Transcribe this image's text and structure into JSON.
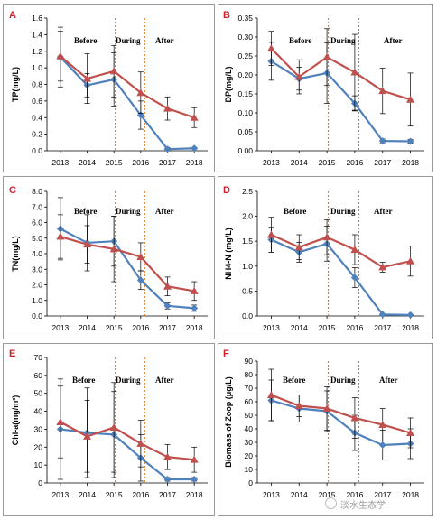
{
  "watermark": {
    "brand": "淡水生态学",
    "logo_text": "淡水生态学"
  },
  "colors": {
    "blue": "#4F81BD",
    "red": "#C0504D",
    "phase_line": "#E46C0A",
    "error_bar": "#000000",
    "axis": "#000000"
  },
  "chart_data": [
    {
      "type": "line",
      "panel": "A",
      "ylabel": "TP(mg/L)",
      "xlabel": "",
      "categories": [
        "2013",
        "2014",
        "2015",
        "2016",
        "2017",
        "2018"
      ],
      "ylim": [
        0,
        1.6
      ],
      "yticks": [
        "0.0",
        "0.2",
        "0.4",
        "0.6",
        "0.8",
        "1.0",
        "1.2",
        "1.4",
        "1.6"
      ],
      "period_labels": [
        "Before",
        "During",
        "After"
      ],
      "phase_lines_at": [
        2015.05,
        2016.15
      ],
      "series": [
        {
          "color": "blue",
          "marker": "diamond",
          "values": [
            1.13,
            0.79,
            0.86,
            0.43,
            0.02,
            0.03
          ],
          "errors": [
            0.36,
            0.14,
            0.32,
            0.17,
            0.02,
            0.01
          ]
        },
        {
          "color": "red",
          "marker": "triangle",
          "values": [
            1.14,
            0.87,
            0.96,
            0.7,
            0.51,
            0.4
          ],
          "errors": [
            0.3,
            0.3,
            0.31,
            0.25,
            0.14,
            0.12
          ]
        }
      ]
    },
    {
      "type": "line",
      "panel": "B",
      "ylabel": "DP(mg/L)",
      "xlabel": "",
      "categories": [
        "2013",
        "2014",
        "2015",
        "2016",
        "2017",
        "2018"
      ],
      "ylim": [
        0,
        0.35
      ],
      "yticks": [
        "0.00",
        "0.05",
        "0.10",
        "0.15",
        "0.20",
        "0.25",
        "0.30",
        "0.35"
      ],
      "period_labels": [
        "Before",
        "During",
        "After"
      ],
      "phase_lines_at": [
        2015.05,
        2016.15
      ],
      "series": [
        {
          "color": "blue",
          "marker": "diamond",
          "values": [
            0.236,
            0.19,
            0.205,
            0.125,
            0.026,
            0.025
          ],
          "errors": [
            0.05,
            0.03,
            0.08,
            0.02,
            0.005,
            0.005
          ]
        },
        {
          "color": "red",
          "marker": "triangle",
          "values": [
            0.27,
            0.195,
            0.247,
            0.207,
            0.158,
            0.135
          ],
          "errors": [
            0.045,
            0.045,
            0.075,
            0.1,
            0.06,
            0.07
          ]
        }
      ]
    },
    {
      "type": "line",
      "panel": "C",
      "ylabel": "TN(mg/L)",
      "xlabel": "",
      "categories": [
        "2013",
        "2014",
        "2015",
        "2016",
        "2017",
        "2018"
      ],
      "ylim": [
        0,
        8.0
      ],
      "yticks": [
        "0.0",
        "1.0",
        "2.0",
        "3.0",
        "4.0",
        "5.0",
        "6.0",
        "7.0",
        "8.0"
      ],
      "period_labels": [
        "Before",
        "During",
        "After"
      ],
      "phase_lines_at": [
        2015.05,
        2016.15
      ],
      "series": [
        {
          "color": "blue",
          "marker": "diamond",
          "values": [
            5.6,
            4.7,
            4.8,
            2.3,
            0.65,
            0.5
          ],
          "errors": [
            2.0,
            1.8,
            1.6,
            0.6,
            0.2,
            0.2
          ]
        },
        {
          "color": "red",
          "marker": "triangle",
          "values": [
            5.1,
            4.6,
            4.3,
            3.8,
            1.9,
            1.6
          ],
          "errors": [
            1.4,
            1.2,
            2.1,
            0.9,
            0.6,
            0.6
          ]
        }
      ]
    },
    {
      "type": "line",
      "panel": "D",
      "ylabel": "NH4-N (mg/L)",
      "xlabel": "",
      "categories": [
        "2013",
        "2014",
        "2015",
        "2016",
        "2017",
        "2018"
      ],
      "ylim": [
        0,
        2.5
      ],
      "yticks": [
        "0.0",
        "0.5",
        "1.0",
        "1.5",
        "2.0",
        "2.5"
      ],
      "period_labels": [
        "Before",
        "During",
        "After"
      ],
      "phase_lines_at": [
        2015.05,
        2016.15
      ],
      "series": [
        {
          "color": "blue",
          "marker": "diamond",
          "values": [
            1.53,
            1.28,
            1.45,
            0.77,
            0.03,
            0.02
          ],
          "errors": [
            0.25,
            0.2,
            0.35,
            0.2,
            0.01,
            0.01
          ]
        },
        {
          "color": "red",
          "marker": "triangle",
          "values": [
            1.63,
            1.38,
            1.58,
            1.33,
            0.98,
            1.1
          ],
          "errors": [
            0.35,
            0.25,
            0.35,
            0.3,
            0.1,
            0.3
          ]
        }
      ]
    },
    {
      "type": "line",
      "panel": "E",
      "ylabel": "Chl-a(mg/m³)",
      "xlabel": "",
      "categories": [
        "2013",
        "2014",
        "2015",
        "2016",
        "2017",
        "2018"
      ],
      "ylim": [
        0,
        70
      ],
      "yticks": [
        "0",
        "10",
        "20",
        "30",
        "40",
        "50",
        "60",
        "70"
      ],
      "period_labels": [
        "Before",
        "During",
        "After"
      ],
      "phase_lines_at": [
        2015.05,
        2016.15
      ],
      "series": [
        {
          "color": "blue",
          "marker": "diamond",
          "values": [
            30,
            28,
            27,
            14,
            2,
            2
          ],
          "errors": [
            28,
            25,
            24,
            13,
            1,
            1
          ]
        },
        {
          "color": "red",
          "marker": "triangle",
          "values": [
            34,
            26,
            31,
            22,
            14.5,
            13
          ],
          "errors": [
            20,
            20,
            25,
            13,
            7,
            7
          ]
        }
      ]
    },
    {
      "type": "line",
      "panel": "F",
      "ylabel": "Biomass of Zoop (μg/L)",
      "xlabel": "",
      "categories": [
        "2013",
        "2014",
        "2015",
        "2016",
        "2017",
        "2018"
      ],
      "ylim": [
        0,
        90
      ],
      "yticks": [
        "0",
        "10",
        "20",
        "30",
        "40",
        "50",
        "60",
        "70",
        "80",
        "90"
      ],
      "period_labels": [
        "Before",
        "During",
        "After"
      ],
      "phase_lines_at": [
        2015.05,
        2016.15
      ],
      "series": [
        {
          "color": "blue",
          "marker": "diamond",
          "values": [
            61,
            55,
            53,
            37,
            28,
            29
          ],
          "errors": [
            15,
            10,
            15,
            13,
            11,
            11
          ]
        },
        {
          "color": "red",
          "marker": "triangle",
          "values": [
            65,
            57,
            55,
            48,
            43,
            37
          ],
          "errors": [
            19,
            8,
            16,
            15,
            12,
            11
          ]
        }
      ]
    }
  ]
}
